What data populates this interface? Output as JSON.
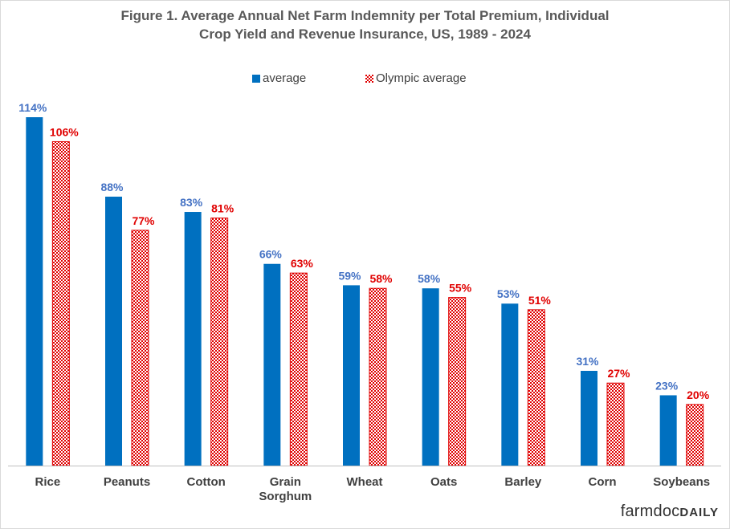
{
  "title": {
    "line1": "Figure 1.  Average Annual Net Farm Indemnity per Total Premium, Individual",
    "line2": "Crop Yield and Revenue Insurance, US,  1989 - 2024"
  },
  "legend": {
    "average": "average",
    "olympic": "Olympic average"
  },
  "logo": {
    "part1": "farmdoc",
    "part2": "DAILY"
  },
  "colors": {
    "average": "#0070c0",
    "olympic": "#e00000",
    "average_label": "#4472c4",
    "olympic_label": "#e00000",
    "category_label": "#404040",
    "axis": "#bfbfbf"
  },
  "chart_data": {
    "type": "bar",
    "title": "Figure 1.  Average Annual Net Farm Indemnity per Total Premium, Individual Crop Yield and Revenue Insurance, US,  1989 - 2024",
    "categories": [
      [
        "Rice"
      ],
      [
        "Peanuts"
      ],
      [
        "Cotton"
      ],
      [
        "Grain",
        "Sorghum"
      ],
      [
        "Wheat"
      ],
      [
        "Oats"
      ],
      [
        "Barley"
      ],
      [
        "Corn"
      ],
      [
        "Soybeans"
      ]
    ],
    "series": [
      {
        "name": "average",
        "values": [
          114,
          88,
          83,
          66,
          59,
          58,
          53,
          31,
          23
        ],
        "labels": [
          "114%",
          "88%",
          "83%",
          "66%",
          "59%",
          "58%",
          "53%",
          "31%",
          "23%"
        ]
      },
      {
        "name": "Olympic average",
        "values": [
          106,
          77,
          81,
          63,
          58,
          55,
          51,
          27,
          20
        ],
        "labels": [
          "106%",
          "77%",
          "81%",
          "63%",
          "58%",
          "55%",
          "51%",
          "27%",
          "20%"
        ]
      }
    ],
    "ylim": [
      0,
      114
    ],
    "grid": false,
    "legend_position": "top-center",
    "xlabel": "",
    "ylabel": ""
  }
}
